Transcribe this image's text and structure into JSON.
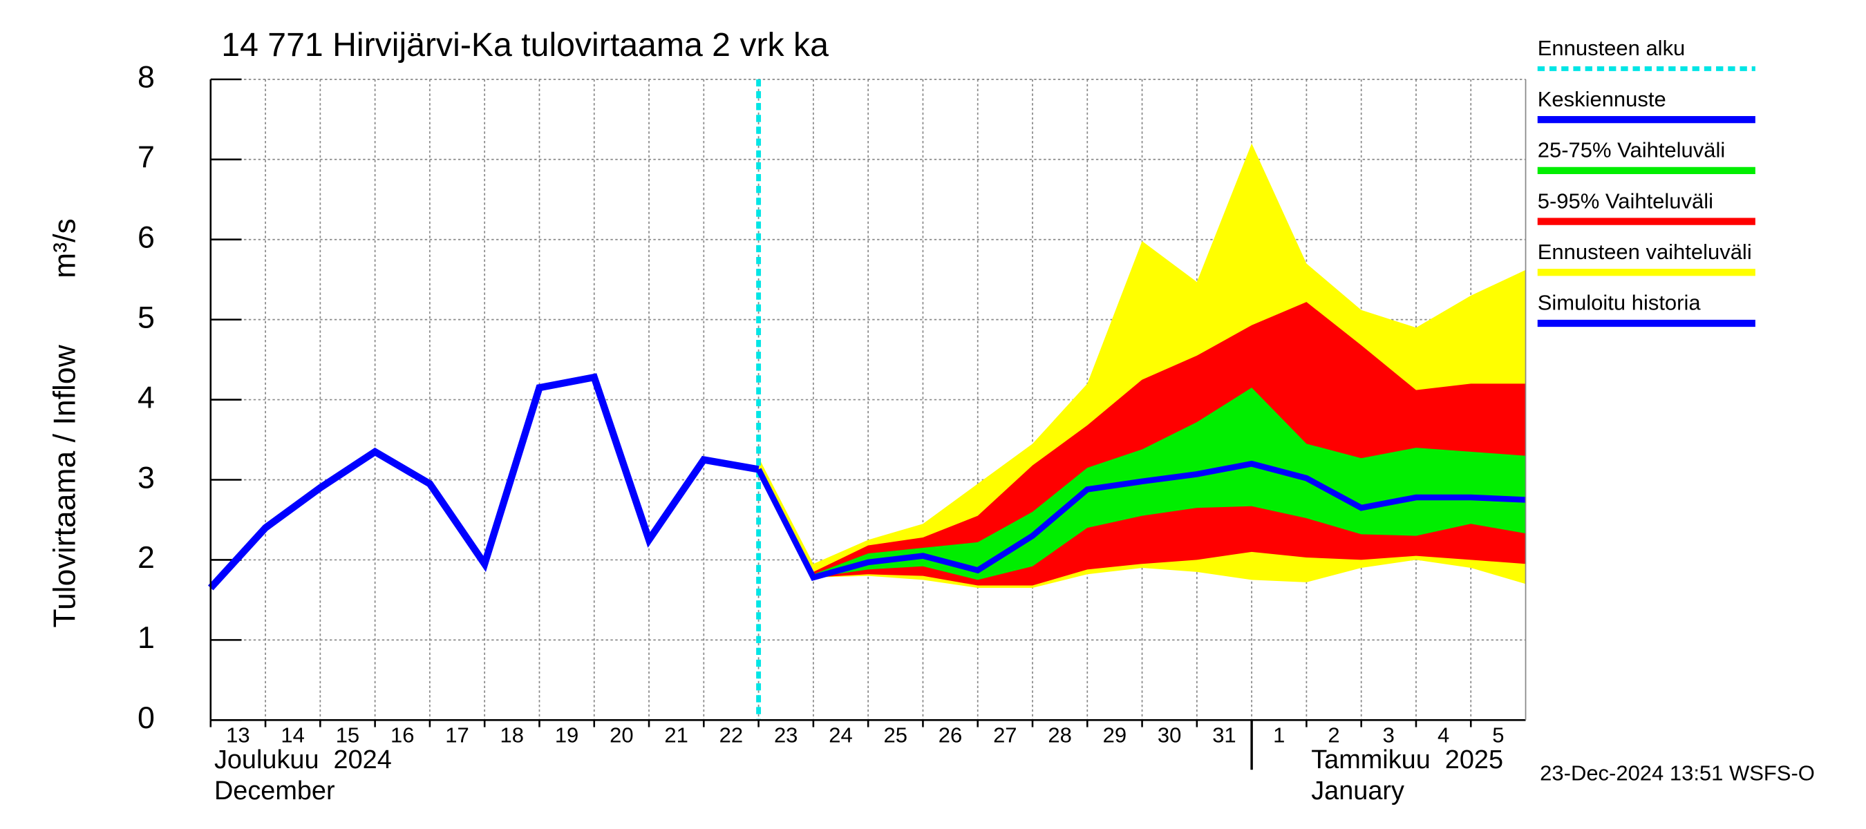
{
  "chart_data": {
    "type": "band-forecast",
    "title": "14 771 Hirvijärvi-Ka tulovirtaama 2 vrk ka",
    "y_label": "Tulovirtaama / Inflow",
    "y_unit": "m³/s",
    "footer": "23-Dec-2024 13:51 WSFS-O",
    "xlim": [
      0,
      24
    ],
    "xticks": [
      {
        "value": 0,
        "label": "13"
      },
      {
        "value": 1,
        "label": "14"
      },
      {
        "value": 2,
        "label": "15"
      },
      {
        "value": 3,
        "label": "16"
      },
      {
        "value": 4,
        "label": "17"
      },
      {
        "value": 5,
        "label": "18"
      },
      {
        "value": 6,
        "label": "19"
      },
      {
        "value": 7,
        "label": "20"
      },
      {
        "value": 8,
        "label": "21"
      },
      {
        "value": 9,
        "label": "22"
      },
      {
        "value": 10,
        "label": "23"
      },
      {
        "value": 11,
        "label": "24"
      },
      {
        "value": 12,
        "label": "25"
      },
      {
        "value": 13,
        "label": "26"
      },
      {
        "value": 14,
        "label": "27"
      },
      {
        "value": 15,
        "label": "28"
      },
      {
        "value": 16,
        "label": "29"
      },
      {
        "value": 17,
        "label": "30"
      },
      {
        "value": 18,
        "label": "31"
      },
      {
        "value": 19,
        "label": "1"
      },
      {
        "value": 20,
        "label": "2"
      },
      {
        "value": 21,
        "label": "3"
      },
      {
        "value": 22,
        "label": "4"
      },
      {
        "value": 23,
        "label": "5"
      }
    ],
    "ylim": [
      0,
      8
    ],
    "yticks": [
      0,
      1,
      2,
      3,
      4,
      5,
      6,
      7,
      8
    ],
    "grid": true,
    "months": [
      {
        "x": 0,
        "label": "Joulukuu  2024",
        "sublabel": "December"
      },
      {
        "x": 19,
        "label": "Tammikuu  2025",
        "sublabel": "January"
      }
    ],
    "forecast_start": {
      "name": "Ennusteen alku",
      "x": 10,
      "color": "#00e5e5"
    },
    "forecast_x": [
      10,
      11,
      12,
      13,
      14,
      15,
      16,
      17,
      18,
      19,
      20,
      21,
      22,
      23,
      24
    ],
    "bands": [
      {
        "name": "Ennusteen vaihteluväli",
        "color": "#ffff00",
        "upper": [
          3.28,
          1.95,
          2.25,
          2.45,
          2.95,
          3.45,
          4.2,
          5.98,
          5.47,
          7.2,
          5.7,
          5.12,
          4.9,
          5.3,
          5.62
        ],
        "lower": [
          3.13,
          1.78,
          1.8,
          1.75,
          1.65,
          1.65,
          1.82,
          1.9,
          1.85,
          1.75,
          1.72,
          1.9,
          2.0,
          1.9,
          1.7
        ]
      },
      {
        "name": "5-95% Vaihteluväli",
        "color": "#ff0000",
        "upper": [
          3.13,
          1.85,
          2.18,
          2.28,
          2.55,
          3.18,
          3.68,
          4.25,
          4.55,
          4.93,
          5.22,
          4.68,
          4.12,
          4.2,
          4.2
        ],
        "lower": [
          3.13,
          1.78,
          1.82,
          1.8,
          1.68,
          1.68,
          1.88,
          1.95,
          2.0,
          2.1,
          2.03,
          2.0,
          2.05,
          2.0,
          1.95
        ]
      },
      {
        "name": "25-75% Vaihteluväli",
        "color": "#00ee00",
        "upper": [
          3.13,
          1.82,
          2.08,
          2.15,
          2.22,
          2.6,
          3.15,
          3.38,
          3.72,
          4.15,
          3.45,
          3.27,
          3.4,
          3.35,
          3.3
        ],
        "lower": [
          3.13,
          1.78,
          1.88,
          1.92,
          1.75,
          1.92,
          2.4,
          2.55,
          2.65,
          2.67,
          2.52,
          2.32,
          2.3,
          2.45,
          2.33
        ]
      }
    ],
    "series": [
      {
        "name": "Keskiennuste",
        "color": "#0000ff",
        "x": [
          10,
          11,
          12,
          13,
          14,
          15,
          16,
          17,
          18,
          19,
          20,
          21,
          22,
          23,
          24
        ],
        "values": [
          3.13,
          1.78,
          1.97,
          2.05,
          1.87,
          2.3,
          2.88,
          2.98,
          3.07,
          3.2,
          3.02,
          2.65,
          2.78,
          2.78,
          2.75
        ]
      },
      {
        "name": "Simuloitu historia",
        "color": "#0000ff",
        "x": [
          0,
          1,
          2,
          3,
          4,
          5,
          6,
          7,
          8,
          9,
          10
        ],
        "values": [
          1.65,
          2.4,
          2.9,
          3.35,
          2.95,
          1.95,
          4.15,
          4.28,
          2.25,
          3.25,
          3.13
        ]
      }
    ]
  }
}
